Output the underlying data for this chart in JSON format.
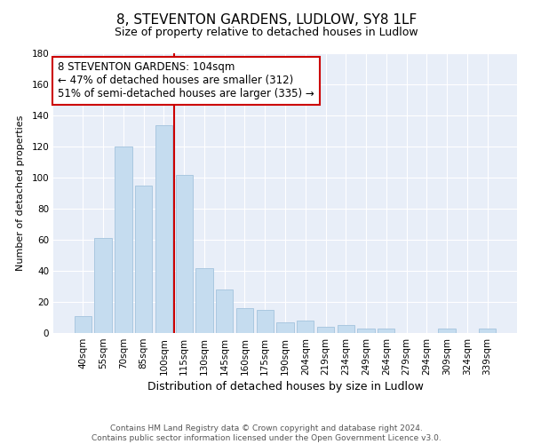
{
  "title": "8, STEVENTON GARDENS, LUDLOW, SY8 1LF",
  "subtitle": "Size of property relative to detached houses in Ludlow",
  "xlabel": "Distribution of detached houses by size in Ludlow",
  "ylabel": "Number of detached properties",
  "categories": [
    "40sqm",
    "55sqm",
    "70sqm",
    "85sqm",
    "100sqm",
    "115sqm",
    "130sqm",
    "145sqm",
    "160sqm",
    "175sqm",
    "190sqm",
    "204sqm",
    "219sqm",
    "234sqm",
    "249sqm",
    "264sqm",
    "279sqm",
    "294sqm",
    "309sqm",
    "324sqm",
    "339sqm"
  ],
  "values": [
    11,
    61,
    120,
    95,
    134,
    102,
    42,
    28,
    16,
    15,
    7,
    8,
    4,
    5,
    3,
    3,
    0,
    0,
    3,
    0,
    3
  ],
  "bar_color": "#c5dcef",
  "bar_edge_color": "#aac8e0",
  "highlight_line_index": 5,
  "highlight_line_color": "#cc0000",
  "annotation_text": "8 STEVENTON GARDENS: 104sqm\n← 47% of detached houses are smaller (312)\n51% of semi-detached houses are larger (335) →",
  "annotation_box_edge_color": "#cc0000",
  "annotation_box_face_color": "#ffffff",
  "ylim": [
    0,
    180
  ],
  "yticks": [
    0,
    20,
    40,
    60,
    80,
    100,
    120,
    140,
    160,
    180
  ],
  "fig_background_color": "#ffffff",
  "plot_background_color": "#e8eef8",
  "grid_color": "#ffffff",
  "footer_line1": "Contains HM Land Registry data © Crown copyright and database right 2024.",
  "footer_line2": "Contains public sector information licensed under the Open Government Licence v3.0.",
  "title_fontsize": 11,
  "subtitle_fontsize": 9,
  "xlabel_fontsize": 9,
  "ylabel_fontsize": 8,
  "tick_fontsize": 7.5,
  "annotation_fontsize": 8.5,
  "footer_fontsize": 6.5
}
